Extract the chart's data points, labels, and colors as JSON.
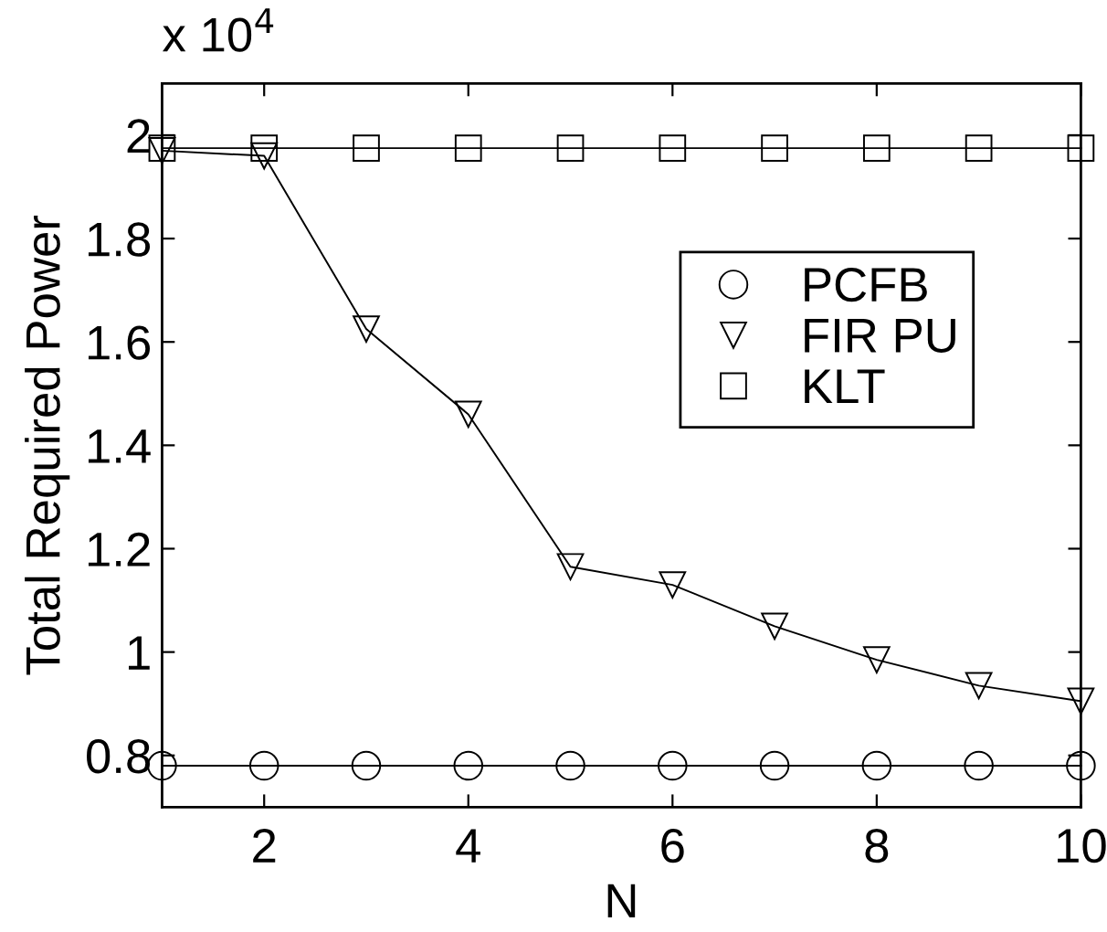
{
  "chart_data": {
    "type": "line",
    "xlabel": "N",
    "ylabel": "Total Required Power",
    "annotations": [
      "x 10$^{4}$"
    ],
    "x": [
      1,
      2,
      3,
      4,
      5,
      6,
      7,
      8,
      9,
      10
    ],
    "series": [
      {
        "name": "PCFB",
        "color": "#000000",
        "marker": "circle",
        "values": [
          0.78,
          0.78,
          0.78,
          0.78,
          0.78,
          0.78,
          0.78,
          0.78,
          0.78,
          0.78
        ]
      },
      {
        "name": "FIR PU",
        "color": "#000000",
        "marker": "triangle",
        "values": [
          1.97,
          1.96,
          1.625,
          1.46,
          1.165,
          1.13,
          1.05,
          0.985,
          0.935,
          0.905
        ]
      },
      {
        "name": "KLT",
        "color": "#000000",
        "marker": "square",
        "values": [
          1.975,
          1.975,
          1.975,
          1.975,
          1.975,
          1.975,
          1.975,
          1.975,
          1.975,
          1.975
        ]
      }
    ],
    "xlim": [
      1,
      10
    ],
    "xticks": [
      2,
      4,
      6,
      8,
      10
    ],
    "ylim": [
      0.7,
      2.1
    ],
    "yticks": [
      0.8,
      1,
      1.2,
      1.4,
      1.6,
      1.8,
      2
    ],
    "legend": "right",
    "line_style": "solid"
  }
}
